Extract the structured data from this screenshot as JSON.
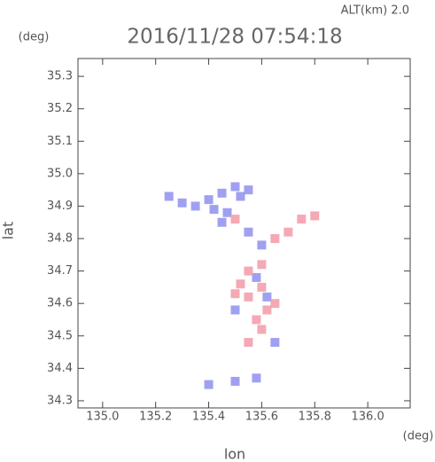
{
  "chart_data": {
    "type": "scatter",
    "title": "2016/11/28 07:54:18",
    "subtitle": "ALT(km) 2.0",
    "y_unit": "(deg)",
    "x_unit": "(deg)",
    "xlabel": "lon",
    "ylabel": "lat",
    "xlim": [
      134.907,
      136.16
    ],
    "ylim": [
      34.278,
      35.355
    ],
    "xticks": [
      {
        "value": 135.0,
        "label": "135.0"
      },
      {
        "value": 135.2,
        "label": "135.2"
      },
      {
        "value": 135.4,
        "label": "135.4"
      },
      {
        "value": 135.6,
        "label": "135.6"
      },
      {
        "value": 135.8,
        "label": "135.8"
      },
      {
        "value": 136.0,
        "label": "136.0"
      }
    ],
    "yticks": [
      {
        "value": 34.3,
        "label": "34.3"
      },
      {
        "value": 34.4,
        "label": "34.4"
      },
      {
        "value": 34.5,
        "label": "34.5"
      },
      {
        "value": 34.6,
        "label": "34.6"
      },
      {
        "value": 34.7,
        "label": "34.7"
      },
      {
        "value": 34.8,
        "label": "34.8"
      },
      {
        "value": 34.9,
        "label": "34.9"
      },
      {
        "value": 35.0,
        "label": "35.0"
      },
      {
        "value": 35.1,
        "label": "35.1"
      },
      {
        "value": 35.2,
        "label": "35.2"
      },
      {
        "value": 35.3,
        "label": "35.3"
      }
    ],
    "series": [
      {
        "color": "#8f8fef",
        "x": [
          135.25,
          135.3,
          135.35,
          135.4,
          135.45,
          135.5,
          135.55,
          135.52,
          135.42,
          135.47,
          135.6,
          135.55,
          135.62,
          135.58,
          135.5,
          135.65,
          135.4,
          135.5,
          135.58,
          135.45
        ],
        "values": [
          34.93,
          34.91,
          34.9,
          34.92,
          34.94,
          34.96,
          34.95,
          34.93,
          34.89,
          34.88,
          34.78,
          34.82,
          34.62,
          34.68,
          34.58,
          34.48,
          34.35,
          34.36,
          34.37,
          34.85
        ]
      },
      {
        "color": "#f29aa8",
        "x": [
          135.5,
          135.65,
          135.7,
          135.75,
          135.8,
          135.55,
          135.6,
          135.55,
          135.5,
          135.62,
          135.58,
          135.6,
          135.55,
          135.65,
          135.52,
          135.6
        ],
        "values": [
          34.86,
          34.8,
          34.82,
          34.86,
          34.87,
          34.7,
          34.65,
          34.62,
          34.63,
          34.58,
          34.55,
          34.52,
          34.48,
          34.6,
          34.66,
          34.72
        ]
      }
    ]
  }
}
